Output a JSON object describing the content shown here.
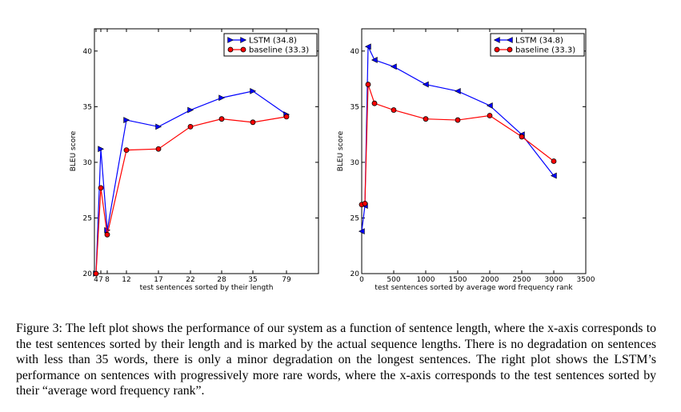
{
  "chart_data": [
    {
      "type": "line",
      "xlabel": "test sentences sorted by their length",
      "ylabel": "BLEU score",
      "ylim": [
        20,
        42
      ],
      "yticks": [
        "20",
        "25",
        "30",
        "35",
        "40"
      ],
      "x_tick_labels": [
        "4",
        "7",
        "8",
        "12",
        "17",
        "22",
        "28",
        "35",
        "79"
      ],
      "legend_position": "top-right",
      "grid": false,
      "series": [
        {
          "name": "LSTM (34.8)",
          "color": "#0000ff",
          "marker": "triangle-right",
          "x": [
            "4",
            "7",
            "8",
            "12",
            "17",
            "22",
            "28",
            "35",
            "79"
          ],
          "values": [
            20.0,
            31.2,
            23.9,
            33.8,
            33.2,
            34.7,
            35.8,
            36.4,
            34.3
          ]
        },
        {
          "name": "baseline (33.3)",
          "color": "#ff0000",
          "marker": "circle",
          "x": [
            "4",
            "7",
            "8",
            "12",
            "17",
            "22",
            "28",
            "35",
            "79"
          ],
          "values": [
            20.0,
            27.7,
            23.5,
            31.1,
            31.2,
            33.2,
            33.9,
            33.6,
            34.1
          ]
        }
      ]
    },
    {
      "type": "line",
      "xlabel": "test sentences sorted by average word frequency rank",
      "ylabel": "BLEU score",
      "ylim": [
        20,
        42
      ],
      "xlim": [
        0,
        3500
      ],
      "yticks": [
        "20",
        "25",
        "30",
        "35",
        "40"
      ],
      "xticks": [
        "0",
        "500",
        "1000",
        "1500",
        "2000",
        "2500",
        "3000",
        "3500"
      ],
      "legend_position": "top-right",
      "grid": false,
      "series": [
        {
          "name": "LSTM (34.8)",
          "color": "#0000ff",
          "marker": "triangle-left",
          "x": [
            0,
            50,
            100,
            200,
            500,
            1000,
            1500,
            2000,
            2500,
            3000
          ],
          "values": [
            23.8,
            26.1,
            40.4,
            39.2,
            38.6,
            37.0,
            36.4,
            35.1,
            32.5,
            28.8
          ]
        },
        {
          "name": "baseline (33.3)",
          "color": "#ff0000",
          "marker": "circle",
          "x": [
            0,
            50,
            100,
            200,
            500,
            1000,
            1500,
            2000,
            2500,
            3000
          ],
          "values": [
            26.2,
            26.3,
            37.0,
            35.3,
            34.7,
            33.9,
            33.8,
            34.2,
            32.3,
            30.1
          ]
        }
      ]
    }
  ],
  "caption": "Figure 3: The left plot shows the performance of our system as a function of sentence length, where the x-axis corresponds to the test sentences sorted by their length and is marked by the actual sequence lengths. There is no degradation on sentences with less than 35 words, there is only a minor degradation on the longest sentences. The right plot shows the LSTM’s performance on sentences with progressively more rare words, where the x-axis corresponds to the test sentences sorted by their “average word frequency rank”."
}
